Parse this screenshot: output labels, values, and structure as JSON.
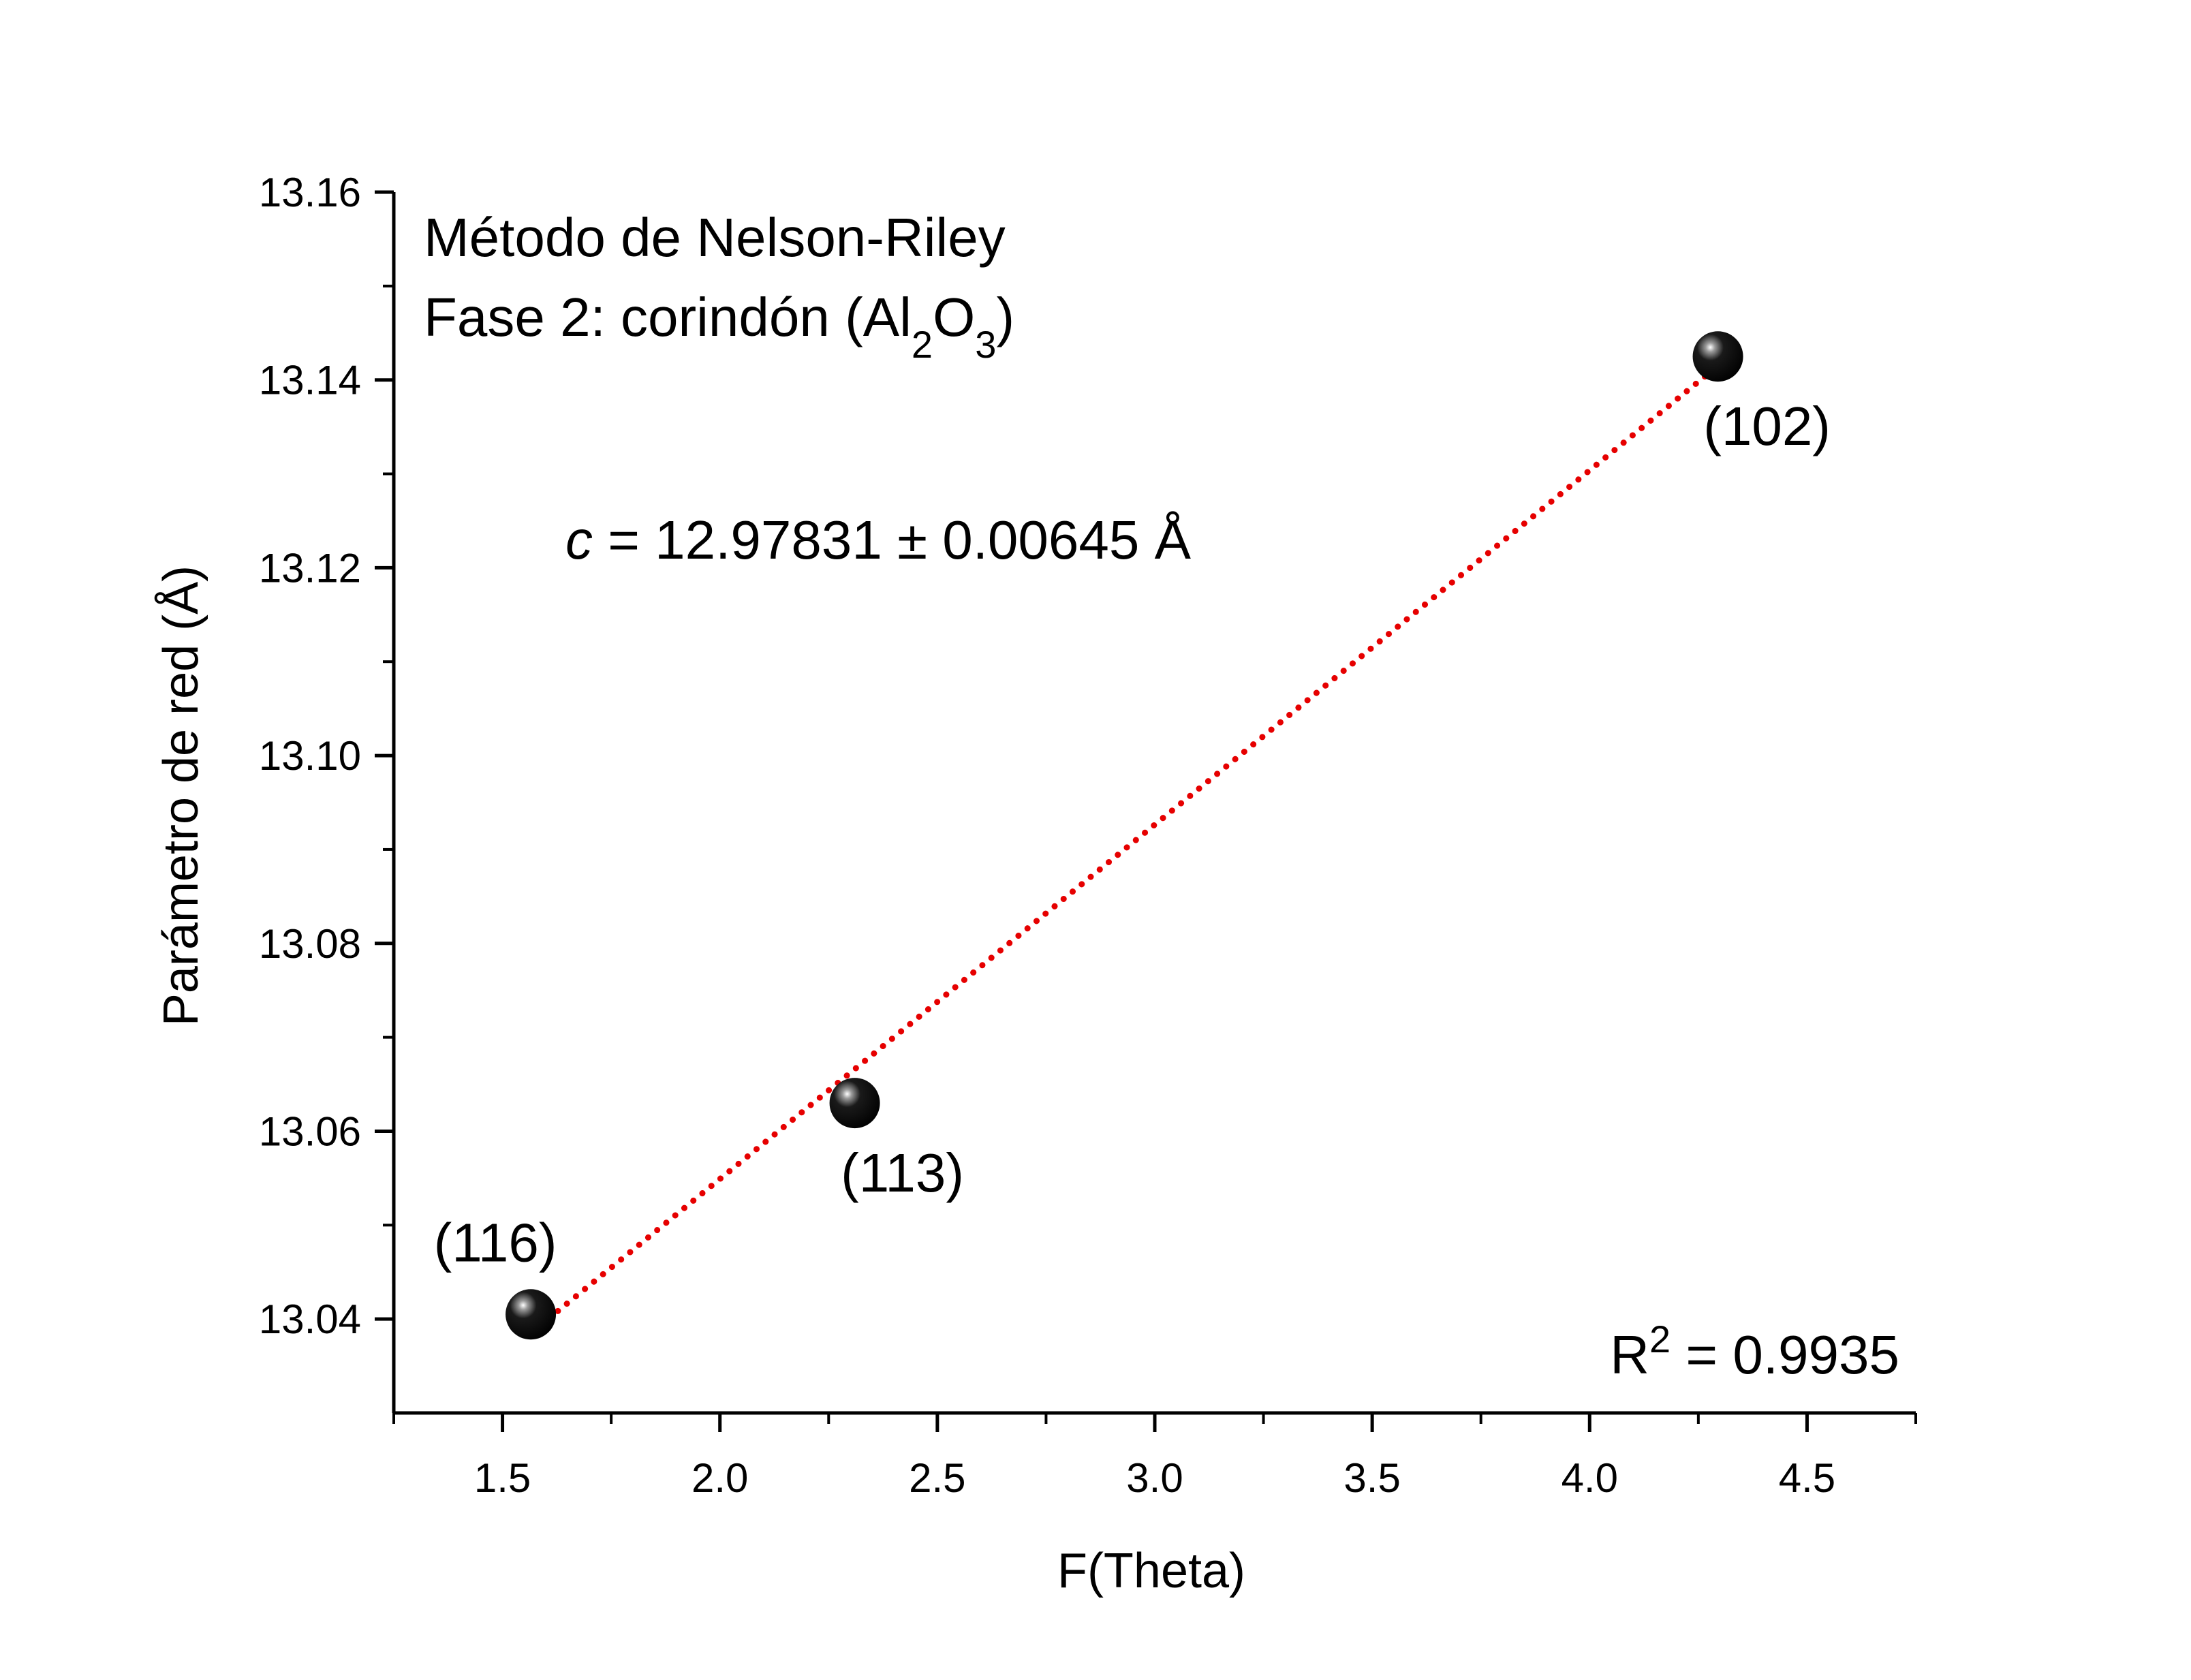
{
  "chart_data": {
    "type": "scatter",
    "title": "",
    "xlabel": "F(Theta)",
    "ylabel": "Parámetro de red (Å)",
    "xlim": [
      1.25,
      4.75
    ],
    "ylim": [
      13.03,
      13.16
    ],
    "x_ticks": [
      1.5,
      2.0,
      2.5,
      3.0,
      3.5,
      4.0,
      4.5
    ],
    "x_tick_labels": [
      "1.5",
      "2.0",
      "2.5",
      "3.0",
      "3.5",
      "4.0",
      "4.5"
    ],
    "y_ticks": [
      13.04,
      13.06,
      13.08,
      13.1,
      13.12,
      13.14,
      13.16
    ],
    "y_tick_labels": [
      "13.04",
      "13.06",
      "13.08",
      "13.10",
      "13.12",
      "13.14",
      "13.16"
    ],
    "grid": false,
    "series": [
      {
        "points": [
          {
            "x": 1.565,
            "y": 13.0405,
            "label": "(116)"
          },
          {
            "x": 2.31,
            "y": 13.063,
            "label": "(113)"
          },
          {
            "x": 4.295,
            "y": 13.1425,
            "label": "(102)"
          }
        ],
        "marker": "sphere",
        "color": "#000000"
      }
    ],
    "fit": {
      "x": [
        1.565,
        4.295
      ],
      "y": [
        13.0385,
        13.1415
      ],
      "color": "#e60000",
      "style": "dotted"
    },
    "annotations": {
      "line1": "Método de Nelson-Riley",
      "line2_prefix": "Fase 2: corindón (Al",
      "line2_sub1": "2",
      "line2_mid": "O",
      "line2_sub2": "3",
      "line2_suffix": ")",
      "c_symbol": "c",
      "c_value": " = 12.97831 ± 0.00645 Å",
      "r2_prefix": "R",
      "r2_sup": "2",
      "r2_value": " = 0.9935"
    }
  }
}
